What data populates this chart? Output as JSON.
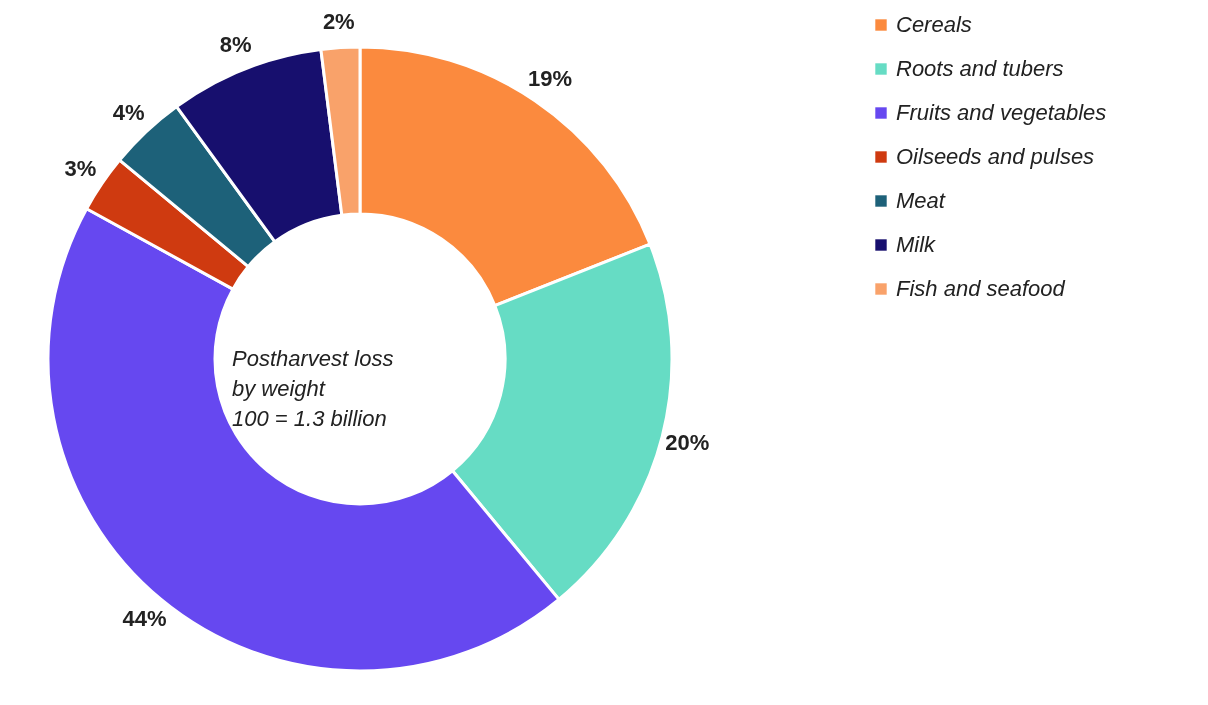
{
  "chart_data": {
    "type": "donut",
    "categories": [
      "Cereals",
      "Roots and tubers",
      "Fruits and vegetables",
      "Oilseeds and pulses",
      "Meat",
      "Milk",
      "Fish and seafood"
    ],
    "values": [
      19,
      20,
      44,
      3,
      4,
      8,
      2
    ],
    "value_labels": [
      "19%",
      "20%",
      "44%",
      "3%",
      "4%",
      "8%",
      "2%"
    ],
    "colors": [
      "#fb8a3e",
      "#66dcc4",
      "#6648f0",
      "#cf3a10",
      "#1d6179",
      "#170f6e",
      "#f9a26a"
    ],
    "annotations": [
      "Postharvest loss\nby weight\n100 = 1.3 billion"
    ],
    "legend": "right"
  }
}
